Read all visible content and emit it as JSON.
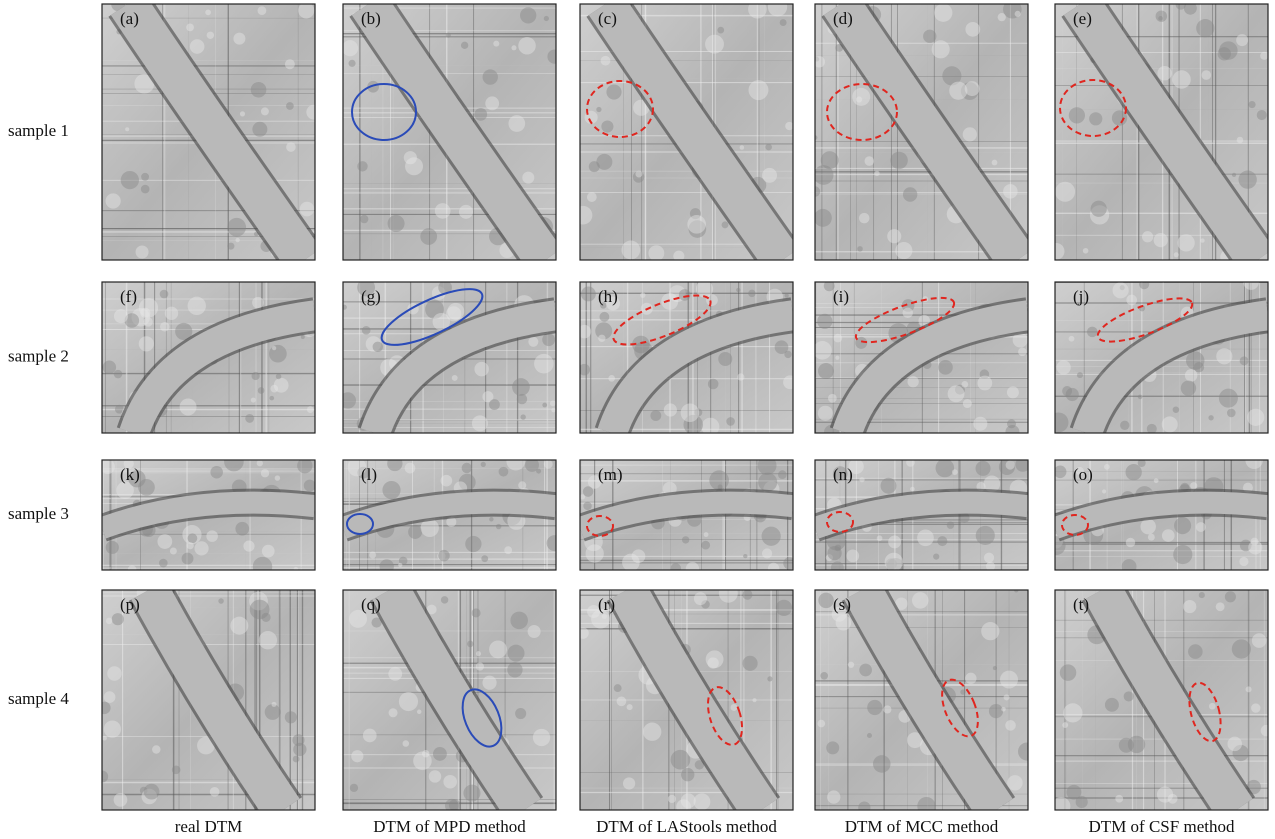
{
  "rows": [
    {
      "label": "sample 1",
      "panels": [
        "(a)",
        "(b)",
        "(c)",
        "(d)",
        "(e)"
      ]
    },
    {
      "label": "sample 2",
      "panels": [
        "(f)",
        "(g)",
        "(h)",
        "(i)",
        "(j)"
      ]
    },
    {
      "label": "sample 3",
      "panels": [
        "(k)",
        "(l)",
        "(m)",
        "(n)",
        "(o)"
      ]
    },
    {
      "label": "sample 4",
      "panels": [
        "(p)",
        "(q)",
        "(r)",
        "(s)",
        "(t)"
      ]
    }
  ],
  "columns": [
    "real DTM",
    "DTM of MPD method",
    "DTM of LAStools method",
    "DTM of MCC method",
    "DTM of CSF method"
  ]
}
